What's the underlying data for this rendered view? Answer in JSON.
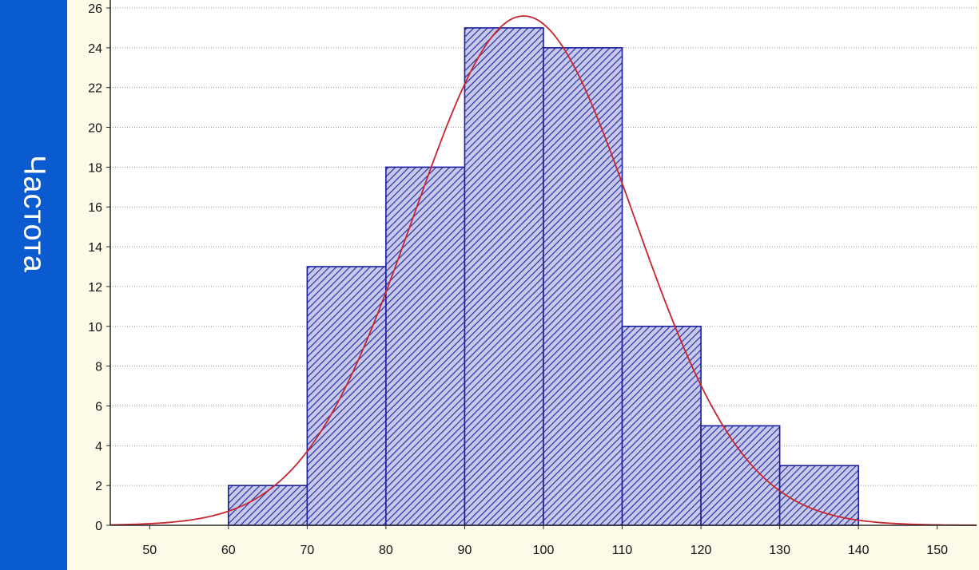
{
  "chart_data": {
    "type": "bar",
    "title": "",
    "xlabel": "",
    "ylabel": "Частота",
    "bins": [
      {
        "from": 60,
        "to": 70,
        "value": 2
      },
      {
        "from": 70,
        "to": 80,
        "value": 13
      },
      {
        "from": 80,
        "to": 90,
        "value": 18
      },
      {
        "from": 90,
        "to": 100,
        "value": 25
      },
      {
        "from": 100,
        "to": 110,
        "value": 24
      },
      {
        "from": 110,
        "to": 120,
        "value": 10
      },
      {
        "from": 120,
        "to": 130,
        "value": 5
      },
      {
        "from": 130,
        "to": 140,
        "value": 3
      }
    ],
    "fit_curve": {
      "type": "normal",
      "mean": 97.5,
      "sd": 14,
      "peak": 25.6
    },
    "xlim": [
      45,
      155
    ],
    "ylim": [
      0,
      26
    ],
    "xticks": [
      50,
      60,
      70,
      80,
      90,
      100,
      110,
      120,
      130,
      140,
      150
    ],
    "yticks": [
      0,
      2,
      4,
      6,
      8,
      10,
      12,
      14,
      16,
      18,
      20,
      22,
      24,
      26
    ],
    "grid": true,
    "colors": {
      "bar_edge": "#1a1f9e",
      "bar_hatch": "#2a2fa6",
      "bar_fill": "#c6c9ec",
      "curve": "#c8262d",
      "grid": "#9a9a9a",
      "frame": "#2a2a2a",
      "plot_bg": "#ffffff",
      "panel_bg": "#fffbe9",
      "page_bg": "#0a5bcf"
    }
  }
}
